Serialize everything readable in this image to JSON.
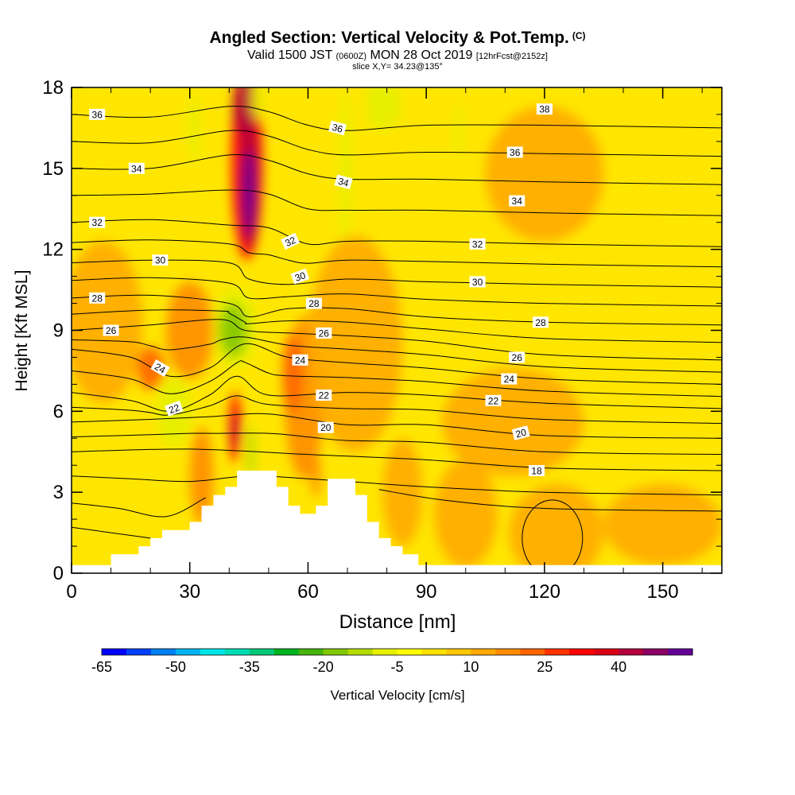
{
  "titles": {
    "main": "Angled Section: Vertical Velocity & Pot.Temp.",
    "main_suffix": "(C)",
    "valid_prefix": "Valid 1500 JST",
    "valid_utc": "(0600Z)",
    "valid_date": "MON 28 Oct 2019",
    "forecast": "[12hrFcst@2152z]",
    "slice": "slice X,Y= 34.23@135°"
  },
  "chart_data": {
    "type": "heatmap",
    "xlabel": "Distance [nm]",
    "ylabel": "Height [Kft MSL]",
    "xlim": [
      0,
      165
    ],
    "ylim": [
      0,
      18
    ],
    "xticks": [
      0,
      30,
      60,
      90,
      120,
      150
    ],
    "yticks": [
      0,
      3,
      6,
      9,
      12,
      15,
      18
    ],
    "shading": "Vertical Velocity [cm/s]",
    "contours": "Potential temperature (C)",
    "terrain_profile": [
      [
        0,
        0.3
      ],
      [
        10,
        0.3
      ],
      [
        10,
        0.7
      ],
      [
        17,
        0.7
      ],
      [
        17,
        1.0
      ],
      [
        20,
        1.0
      ],
      [
        20,
        1.3
      ],
      [
        23,
        1.3
      ],
      [
        23,
        1.6
      ],
      [
        30,
        1.6
      ],
      [
        30,
        1.9
      ],
      [
        33,
        1.9
      ],
      [
        33,
        2.5
      ],
      [
        36,
        2.5
      ],
      [
        36,
        2.9
      ],
      [
        39,
        2.9
      ],
      [
        39,
        3.2
      ],
      [
        42,
        3.2
      ],
      [
        42,
        3.8
      ],
      [
        52,
        3.8
      ],
      [
        52,
        3.2
      ],
      [
        55,
        3.2
      ],
      [
        55,
        2.5
      ],
      [
        58,
        2.5
      ],
      [
        58,
        2.2
      ],
      [
        62,
        2.2
      ],
      [
        62,
        2.5
      ],
      [
        65,
        2.5
      ],
      [
        65,
        3.5
      ],
      [
        72,
        3.5
      ],
      [
        72,
        2.9
      ],
      [
        75,
        2.9
      ],
      [
        75,
        1.9
      ],
      [
        78,
        1.9
      ],
      [
        78,
        1.3
      ],
      [
        81,
        1.3
      ],
      [
        81,
        1.0
      ],
      [
        84,
        1.0
      ],
      [
        84,
        0.7
      ],
      [
        88,
        0.7
      ],
      [
        88,
        0.3
      ],
      [
        165,
        0.3
      ]
    ],
    "isentropes": [
      {
        "label": "36",
        "values": [
          [
            0,
            17.0
          ],
          [
            20,
            16.9
          ],
          [
            40,
            17.3
          ],
          [
            50,
            17.1
          ],
          [
            60,
            16.6
          ],
          [
            70,
            16.4
          ],
          [
            90,
            16.6
          ],
          [
            120,
            16.6
          ],
          [
            165,
            16.5
          ]
        ]
      },
      {
        "label": "34",
        "values": [
          [
            0,
            15.0
          ],
          [
            20,
            15.0
          ],
          [
            40,
            15.5
          ],
          [
            50,
            15.3
          ],
          [
            60,
            14.8
          ],
          [
            70,
            14.6
          ],
          [
            90,
            14.6
          ],
          [
            120,
            14.5
          ],
          [
            165,
            14.4
          ]
        ]
      },
      {
        "label": "32",
        "values": [
          [
            0,
            13.0
          ],
          [
            20,
            13.1
          ],
          [
            40,
            12.9
          ],
          [
            50,
            12.8
          ],
          [
            60,
            12.2
          ],
          [
            70,
            12.3
          ],
          [
            90,
            12.3
          ],
          [
            120,
            12.2
          ],
          [
            165,
            12.1
          ]
        ]
      },
      {
        "label": "30",
        "values": [
          [
            0,
            11.5
          ],
          [
            20,
            11.6
          ],
          [
            40,
            11.5
          ],
          [
            45,
            10.9
          ],
          [
            55,
            10.7
          ],
          [
            70,
            10.9
          ],
          [
            90,
            10.8
          ],
          [
            120,
            10.7
          ],
          [
            165,
            10.6
          ]
        ]
      },
      {
        "label": "28",
        "values": [
          [
            0,
            10.2
          ],
          [
            20,
            10.3
          ],
          [
            40,
            10.0
          ],
          [
            45,
            9.5
          ],
          [
            55,
            9.8
          ],
          [
            70,
            9.8
          ],
          [
            90,
            9.5
          ],
          [
            120,
            9.3
          ],
          [
            165,
            9.2
          ]
        ]
      },
      {
        "label": "26",
        "values": [
          [
            0,
            9.0
          ],
          [
            20,
            9.2
          ],
          [
            38,
            9.4
          ],
          [
            44,
            9.0
          ],
          [
            55,
            8.9
          ],
          [
            70,
            8.8
          ],
          [
            90,
            8.6
          ],
          [
            120,
            8.1
          ],
          [
            165,
            7.9
          ]
        ]
      },
      {
        "label": "24",
        "values": [
          [
            0,
            8.3
          ],
          [
            15,
            8.0
          ],
          [
            25,
            7.3
          ],
          [
            35,
            7.6
          ],
          [
            44,
            8.5
          ],
          [
            55,
            8.0
          ],
          [
            70,
            7.8
          ],
          [
            90,
            7.6
          ],
          [
            120,
            7.2
          ],
          [
            165,
            7.0
          ]
        ]
      },
      {
        "label": "22",
        "values": [
          [
            0,
            6.7
          ],
          [
            15,
            6.4
          ],
          [
            25,
            6.0
          ],
          [
            35,
            6.6
          ],
          [
            42,
            7.3
          ],
          [
            50,
            6.6
          ],
          [
            70,
            6.7
          ],
          [
            90,
            6.6
          ],
          [
            120,
            6.3
          ],
          [
            165,
            6.1
          ]
        ]
      },
      {
        "label": "20",
        "values": [
          [
            0,
            5.6
          ],
          [
            20,
            5.7
          ],
          [
            35,
            5.8
          ],
          [
            50,
            5.9
          ],
          [
            70,
            5.5
          ],
          [
            90,
            5.5
          ],
          [
            120,
            5.1
          ],
          [
            165,
            5.0
          ]
        ]
      },
      {
        "label": "18",
        "values": [
          [
            0,
            4.5
          ],
          [
            30,
            4.6
          ],
          [
            60,
            4.4
          ],
          [
            90,
            4.2
          ],
          [
            120,
            3.9
          ],
          [
            165,
            3.8
          ]
        ]
      }
    ],
    "isentrope_labels": [
      {
        "text": "36",
        "x": 6.5,
        "y": 17.0,
        "rot": 0
      },
      {
        "text": "34",
        "x": 16.5,
        "y": 15.0,
        "rot": 0
      },
      {
        "text": "32",
        "x": 6.5,
        "y": 13.0,
        "rot": 0
      },
      {
        "text": "30",
        "x": 22.5,
        "y": 11.6,
        "rot": 0
      },
      {
        "text": "28",
        "x": 6.5,
        "y": 10.2,
        "rot": 0
      },
      {
        "text": "26",
        "x": 10,
        "y": 9.0,
        "rot": 0
      },
      {
        "text": "24",
        "x": 22.5,
        "y": 7.6,
        "rot": 30
      },
      {
        "text": "22",
        "x": 26,
        "y": 6.1,
        "rot": -20
      },
      {
        "text": "32",
        "x": 55.5,
        "y": 12.3,
        "rot": -25
      },
      {
        "text": "30",
        "x": 58,
        "y": 11.0,
        "rot": -20
      },
      {
        "text": "28",
        "x": 61.5,
        "y": 10.0,
        "rot": 0
      },
      {
        "text": "26",
        "x": 64,
        "y": 8.9,
        "rot": 0
      },
      {
        "text": "24",
        "x": 58,
        "y": 7.9,
        "rot": 0
      },
      {
        "text": "22",
        "x": 64,
        "y": 6.6,
        "rot": 0
      },
      {
        "text": "20",
        "x": 64.5,
        "y": 5.4,
        "rot": 0
      },
      {
        "text": "36",
        "x": 67.5,
        "y": 16.5,
        "rot": 15
      },
      {
        "text": "34",
        "x": 69,
        "y": 14.5,
        "rot": 15
      },
      {
        "text": "38",
        "x": 120,
        "y": 17.2,
        "rot": 0
      },
      {
        "text": "36",
        "x": 112.5,
        "y": 15.6,
        "rot": 0
      },
      {
        "text": "34",
        "x": 113,
        "y": 13.8,
        "rot": 0
      },
      {
        "text": "32",
        "x": 103,
        "y": 12.2,
        "rot": 0
      },
      {
        "text": "30",
        "x": 103,
        "y": 10.8,
        "rot": 0
      },
      {
        "text": "28",
        "x": 119,
        "y": 9.3,
        "rot": 0
      },
      {
        "text": "26",
        "x": 113,
        "y": 8.0,
        "rot": 0
      },
      {
        "text": "24",
        "x": 111,
        "y": 7.2,
        "rot": 0
      },
      {
        "text": "22",
        "x": 107,
        "y": 6.4,
        "rot": 0
      },
      {
        "text": "20",
        "x": 114,
        "y": 5.2,
        "rot": -15
      },
      {
        "text": "18",
        "x": 118,
        "y": 3.8,
        "rot": 0
      }
    ],
    "velocity_blobs": [
      {
        "x": 44.5,
        "y": 15.2,
        "rx": 4.0,
        "ry": 3.6,
        "value": 25
      },
      {
        "x": 45.0,
        "y": 14.6,
        "rx": 2.5,
        "ry": 2.6,
        "value": 35
      },
      {
        "x": 45.0,
        "y": 14.1,
        "rx": 1.5,
        "ry": 1.6,
        "value": 45
      },
      {
        "x": 44.0,
        "y": 17.3,
        "rx": 3.0,
        "ry": 1.2,
        "value": 35
      },
      {
        "x": 41.5,
        "y": 9.1,
        "rx": 5.5,
        "ry": 1.5,
        "value": -15
      },
      {
        "x": 41.0,
        "y": 9.0,
        "rx": 3.5,
        "ry": 1.0,
        "value": -25
      },
      {
        "x": 26.0,
        "y": 6.0,
        "rx": 4.5,
        "ry": 1.3,
        "value": -15
      },
      {
        "x": 41.5,
        "y": 5.4,
        "rx": 1.5,
        "ry": 1.3,
        "value": 25
      },
      {
        "x": 41.5,
        "y": 5.3,
        "rx": 0.8,
        "ry": 0.7,
        "value": 35
      },
      {
        "x": 45.5,
        "y": 4.5,
        "rx": 1.0,
        "ry": 1.0,
        "value": -20
      },
      {
        "x": 69.5,
        "y": 15.0,
        "rx": 1.5,
        "ry": 3.0,
        "value": -15
      },
      {
        "x": 79.0,
        "y": 17.4,
        "rx": 4.5,
        "ry": 1.0,
        "value": -15
      },
      {
        "x": 98.0,
        "y": 16.4,
        "rx": 1.0,
        "ry": 1.0,
        "value": -12
      },
      {
        "x": 47.0,
        "y": 17.6,
        "rx": 1.5,
        "ry": 0.8,
        "value": -12
      },
      {
        "x": 31.0,
        "y": 16.5,
        "rx": 1.5,
        "ry": 1.3,
        "value": -12
      },
      {
        "x": 59.0,
        "y": 6.5,
        "rx": 5.0,
        "ry": 3.0,
        "value": 10
      },
      {
        "x": 56.0,
        "y": 7.4,
        "rx": 2.5,
        "ry": 1.5,
        "value": 18
      },
      {
        "x": 30.0,
        "y": 9.0,
        "rx": 6.0,
        "ry": 1.8,
        "value": 12
      },
      {
        "x": 20.0,
        "y": 7.6,
        "rx": 3.5,
        "ry": 0.8,
        "value": 18
      },
      {
        "x": 72.0,
        "y": 8.5,
        "rx": 12.0,
        "ry": 4.0,
        "value": 8
      },
      {
        "x": 112.0,
        "y": 5.6,
        "rx": 18.0,
        "ry": 2.0,
        "value": 8
      },
      {
        "x": 120.0,
        "y": 14.8,
        "rx": 15.0,
        "ry": 2.5,
        "value": 7
      },
      {
        "x": 33.0,
        "y": 3.6,
        "rx": 3.0,
        "ry": 1.8,
        "value": 12
      },
      {
        "x": 8.0,
        "y": 9.3,
        "rx": 10.0,
        "ry": 3.0,
        "value": 6
      },
      {
        "x": 123.0,
        "y": 1.5,
        "rx": 12.0,
        "ry": 1.8,
        "value": 7
      },
      {
        "x": 150.0,
        "y": 1.8,
        "rx": 15.0,
        "ry": 1.5,
        "value": 7
      },
      {
        "x": 100.0,
        "y": 2.2,
        "rx": 8.0,
        "ry": 2.0,
        "value": 7
      },
      {
        "x": 62.0,
        "y": 3.6,
        "rx": 1.2,
        "ry": 0.8,
        "value": 12
      },
      {
        "x": 84.0,
        "y": 3.0,
        "rx": 5.0,
        "ry": 2.0,
        "value": 7
      }
    ],
    "colorbar": {
      "label": "Vertical Velocity [cm/s]",
      "tick_labels": [
        "-65",
        "-50",
        "-35",
        "-20",
        "-5",
        "10",
        "25",
        "40"
      ],
      "colors": [
        "#0000ff",
        "#0040ff",
        "#0080f0",
        "#00b4f0",
        "#00e6e6",
        "#00dcb4",
        "#00c878",
        "#00b41e",
        "#46b40a",
        "#82c800",
        "#b4dc00",
        "#e6f000",
        "#ffff00",
        "#ffe100",
        "#ffc800",
        "#ffaa00",
        "#ff8c00",
        "#ff6400",
        "#ff3200",
        "#ff0000",
        "#dc0014",
        "#b4003c",
        "#8c0064",
        "#640096"
      ]
    },
    "terrain_color": "#ffffff",
    "grid": false
  }
}
